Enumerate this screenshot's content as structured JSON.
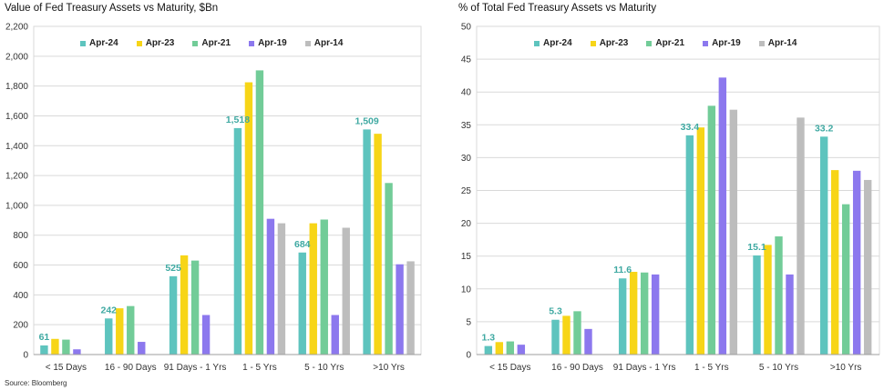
{
  "source": "Source: Bloomberg",
  "series_colors": [
    "#5ec4be",
    "#f7d517",
    "#72cc98",
    "#8c78ee",
    "#bdbdbd"
  ],
  "chart_data": [
    {
      "type": "bar",
      "title": "Value of Fed Treasury Assets vs Maturity, $Bn",
      "categories": [
        "< 15 Days",
        "16 - 90 Days",
        "91 Days - 1 Yrs",
        "1 - 5 Yrs",
        "5 - 10 Yrs",
        ">10 Yrs"
      ],
      "series": [
        {
          "name": "Apr-24",
          "values": [
            61,
            242,
            525,
            1518,
            684,
            1509
          ]
        },
        {
          "name": "Apr-23",
          "values": [
            105,
            310,
            665,
            1825,
            880,
            1480
          ]
        },
        {
          "name": "Apr-21",
          "values": [
            100,
            325,
            630,
            1905,
            905,
            1150
          ]
        },
        {
          "name": "Apr-19",
          "values": [
            35,
            85,
            265,
            910,
            265,
            605
          ]
        },
        {
          "name": "Apr-14",
          "values": [
            0,
            0,
            0,
            880,
            850,
            625
          ]
        }
      ],
      "data_labels": [
        "61",
        "242",
        "525",
        "1,518",
        "684",
        "1,509"
      ],
      "ylim": [
        0,
        2200
      ],
      "yticks": [
        "0",
        "200",
        "400",
        "600",
        "800",
        "1,000",
        "1,200",
        "1,400",
        "1,600",
        "1,800",
        "2,000",
        "2,200"
      ],
      "ytick_values": [
        0,
        200,
        400,
        600,
        800,
        1000,
        1200,
        1400,
        1600,
        1800,
        2000,
        2200
      ],
      "xlabel": "",
      "ylabel": ""
    },
    {
      "type": "bar",
      "title": "% of Total Fed Treasury Assets vs Maturity",
      "categories": [
        "< 15 Days",
        "16 - 90 Days",
        "91 Days - 1 Yrs",
        "1 - 5 Yrs",
        "5 - 10 Yrs",
        ">10 Yrs"
      ],
      "series": [
        {
          "name": "Apr-24",
          "values": [
            1.3,
            5.3,
            11.6,
            33.4,
            15.1,
            33.2
          ]
        },
        {
          "name": "Apr-23",
          "values": [
            1.9,
            5.9,
            12.6,
            34.6,
            16.7,
            28.1
          ]
        },
        {
          "name": "Apr-21",
          "values": [
            2.0,
            6.6,
            12.5,
            37.9,
            18.0,
            22.9
          ]
        },
        {
          "name": "Apr-19",
          "values": [
            1.5,
            3.9,
            12.2,
            42.2,
            12.2,
            28.0
          ]
        },
        {
          "name": "Apr-14",
          "values": [
            0,
            0,
            0,
            37.3,
            36.1,
            26.6
          ]
        }
      ],
      "data_labels": [
        "1.3",
        "5.3",
        "11.6",
        "33.4",
        "15.1",
        "33.2"
      ],
      "ylim": [
        0,
        50
      ],
      "yticks": [
        "0",
        "5",
        "10",
        "15",
        "20",
        "25",
        "30",
        "35",
        "40",
        "45",
        "50"
      ],
      "ytick_values": [
        0,
        5,
        10,
        15,
        20,
        25,
        30,
        35,
        40,
        45,
        50
      ],
      "xlabel": "",
      "ylabel": ""
    }
  ]
}
